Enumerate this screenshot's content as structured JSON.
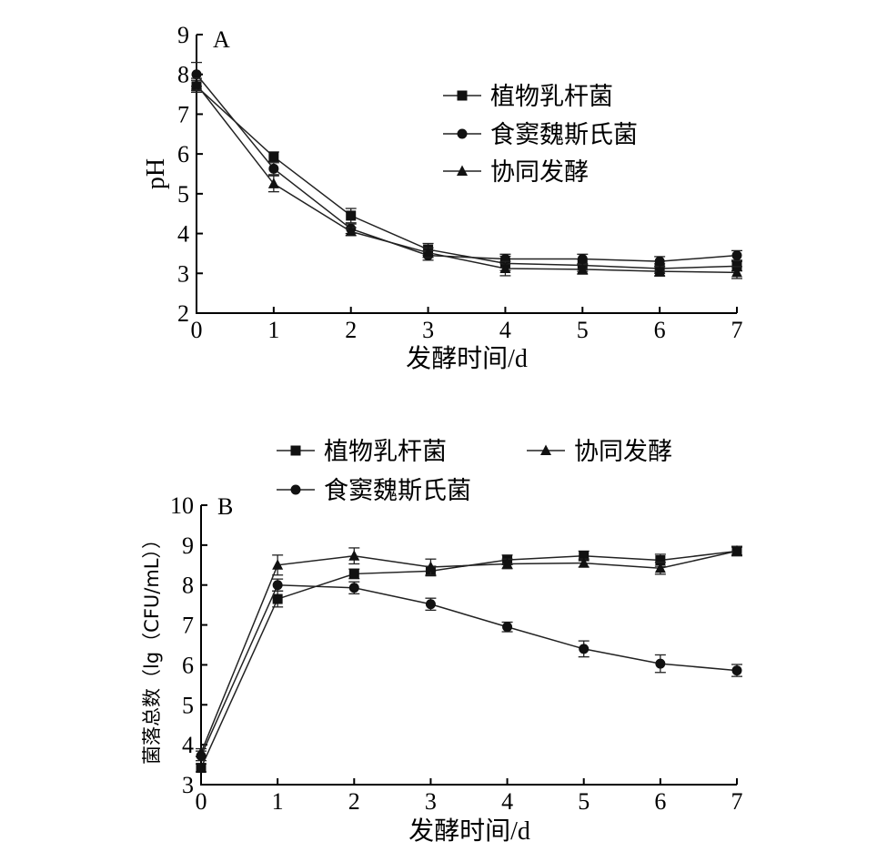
{
  "chart_data": [
    {
      "type": "line",
      "panel_label": "A",
      "xlabel": "发酵时间/d",
      "ylabel": "pH",
      "x": [
        0,
        1,
        2,
        3,
        4,
        5,
        6,
        7
      ],
      "xlim": [
        0,
        7
      ],
      "ylim": [
        2,
        9
      ],
      "x_ticks": [
        "0",
        "1",
        "2",
        "3",
        "4",
        "5",
        "6",
        "7"
      ],
      "y_ticks": [
        "2",
        "3",
        "4",
        "5",
        "6",
        "7",
        "8",
        "9"
      ],
      "legend_position": "upper-right",
      "grid": false,
      "series": [
        {
          "name": "植物乳杆菌",
          "marker": "square",
          "values": [
            7.7,
            5.93,
            4.45,
            3.6,
            3.25,
            3.2,
            3.12,
            3.18
          ],
          "errors": [
            0.15,
            0.12,
            0.18,
            0.15,
            0.18,
            0.15,
            0.12,
            0.12
          ]
        },
        {
          "name": "食窦魏斯氏菌",
          "marker": "circle",
          "values": [
            8.0,
            5.63,
            4.12,
            3.45,
            3.36,
            3.36,
            3.3,
            3.45
          ],
          "errors": [
            0.3,
            0.15,
            0.12,
            0.12,
            0.12,
            0.12,
            0.12,
            0.12
          ]
        },
        {
          "name": "协同发酵",
          "marker": "triangle",
          "values": [
            7.75,
            5.25,
            4.05,
            3.52,
            3.12,
            3.1,
            3.05,
            3.02
          ],
          "errors": [
            0.15,
            0.2,
            0.1,
            0.12,
            0.18,
            0.12,
            0.12,
            0.15
          ]
        }
      ]
    },
    {
      "type": "line",
      "panel_label": "B",
      "xlabel": "发酵时间/d",
      "ylabel": "菌落总数（lg（CFU/mL））",
      "x": [
        0,
        1,
        2,
        3,
        4,
        5,
        6,
        7
      ],
      "xlim": [
        0,
        7
      ],
      "ylim": [
        3,
        10
      ],
      "x_ticks": [
        "0",
        "1",
        "2",
        "3",
        "4",
        "5",
        "6",
        "7"
      ],
      "y_ticks": [
        "3",
        "4",
        "5",
        "6",
        "7",
        "8",
        "9",
        "10"
      ],
      "legend_position": "top",
      "grid": false,
      "series": [
        {
          "name": "植物乳杆菌",
          "marker": "square",
          "values": [
            3.42,
            7.65,
            8.28,
            8.35,
            8.63,
            8.73,
            8.62,
            8.85
          ],
          "errors": [
            0.1,
            0.2,
            0.12,
            0.12,
            0.12,
            0.12,
            0.15,
            0.1
          ]
        },
        {
          "name": "食窦魏斯氏菌",
          "marker": "circle",
          "values": [
            3.72,
            8.0,
            7.93,
            7.52,
            6.95,
            6.4,
            6.03,
            5.86
          ],
          "errors": [
            0.12,
            0.15,
            0.15,
            0.15,
            0.12,
            0.2,
            0.22,
            0.15
          ]
        },
        {
          "name": "协同发酵",
          "marker": "triangle",
          "values": [
            3.8,
            8.5,
            8.73,
            8.45,
            8.53,
            8.55,
            8.42,
            8.85
          ],
          "errors": [
            0.1,
            0.25,
            0.2,
            0.2,
            0.12,
            0.1,
            0.15,
            0.12
          ]
        }
      ]
    }
  ]
}
